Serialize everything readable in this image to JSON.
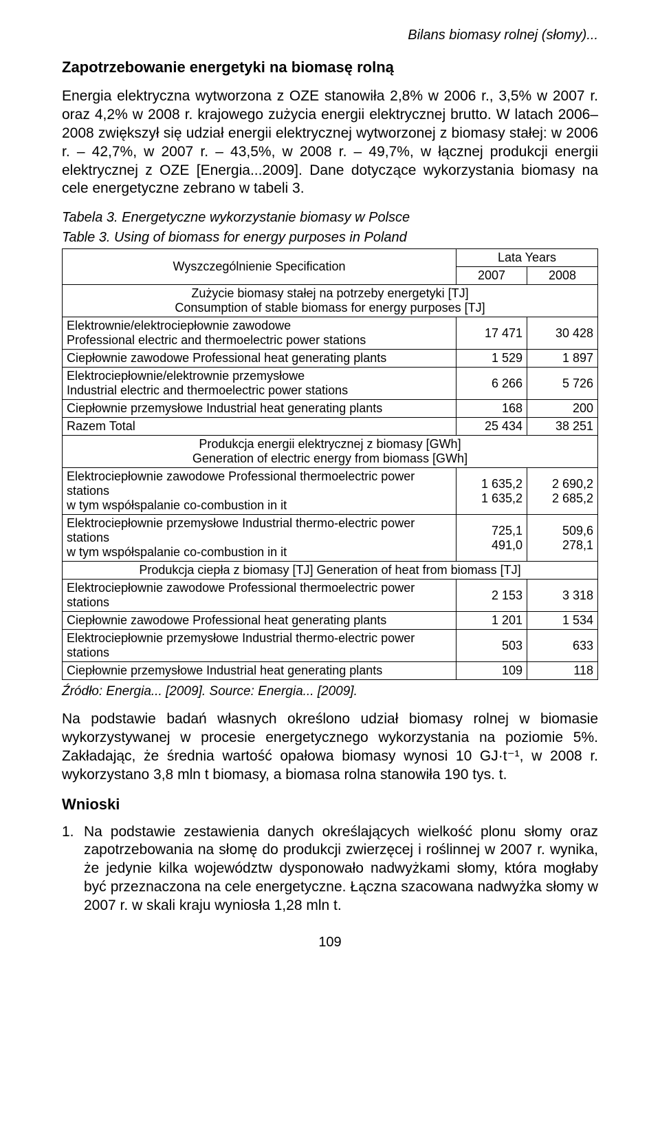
{
  "runningTitle": "Bilans biomasy rolnej (słomy)...",
  "sectionHeading": "Zapotrzebowanie energetyki na biomasę rolną",
  "para1": "Energia elektryczna wytworzona z OZE stanowiła 2,8% w 2006 r., 3,5% w 2007 r. oraz 4,2% w 2008 r. krajowego zużycia energii elektrycznej brutto. W latach 2006–2008 zwiększył się udział energii elektrycznej wytworzonej z biomasy stałej: w 2006 r. – 42,7%, w 2007 r. – 43,5%, w 2008 r. – 49,7%, w łącznej produkcji energii elektrycznej z OZE [Energia...2009]. Dane dotyczące wykorzystania biomasy na cele energetyczne zebrano w tabeli 3.",
  "tableCaptionPl": "Tabela 3. Energetyczne wykorzystanie biomasy w Polsce",
  "tableCaptionEn": "Table 3. Using of biomass for energy purposes in Poland",
  "table": {
    "specHeader": "Wyszczególnienie  Specification",
    "yearsHeader": "Lata  Years",
    "year1": "2007",
    "year2": "2008",
    "sub1": "Zużycie biomasy stałej na potrzeby energetyki [TJ]\nConsumption of stable biomass for energy purposes [TJ]",
    "r1label": "Elektrownie/elektrociepłownie zawodowe\nProfessional electric and thermoelectric power stations",
    "r1v1": "17 471",
    "r1v2": "30 428",
    "r2label": "Ciepłownie zawodowe   Professional heat generating plants",
    "r2v1": "1 529",
    "r2v2": "1 897",
    "r3label": "Elektrociepłownie/elektrownie przemysłowe\nIndustrial electric and thermoelectric power stations",
    "r3v1": "6 266",
    "r3v2": "5 726",
    "r4label": "Ciepłownie przemysłowe   Industrial heat generating plants",
    "r4v1": "168",
    "r4v2": "200",
    "r5label": "Razem   Total",
    "r5v1": "25 434",
    "r5v2": "38 251",
    "sub2": "Produkcja energii elektrycznej z biomasy [GWh]\nGeneration of electric energy from biomass [GWh]",
    "r6label": "Elektrociepłownie zawodowe  Professional thermoelectric power stations\n w tym współspalanie   co-combustion in it",
    "r6v1": "1 635,2\n1 635,2",
    "r6v2": "2 690,2\n2 685,2",
    "r7label": "Elektrociepłownie przemysłowe  Industrial thermo-electric power stations\n w tym współspalanie  co-combustion in it",
    "r7v1": "725,1\n491,0",
    "r7v2": "509,6\n278,1",
    "sub3": "Produkcja ciepła z biomasy [TJ]  Generation of heat from biomass [TJ]",
    "r8label": "Elektrociepłownie zawodowe   Professional thermoelectric power stations",
    "r8v1": "2 153",
    "r8v2": "3 318",
    "r9label": "Ciepłownie zawodowe   Professional heat generating plants",
    "r9v1": "1 201",
    "r9v2": "1 534",
    "r10label": "Elektrociepłownie przemysłowe  Industrial thermo-electric power stations",
    "r10v1": "503",
    "r10v2": "633",
    "r11label": "Ciepłownie przemysłowe  Industrial heat generating plants",
    "r11v1": "109",
    "r11v2": "118"
  },
  "sourceNote": "Źródło: Energia... [2009]. Source: Energia... [2009].",
  "para2": "Na podstawie badań własnych określono udział biomasy rolnej w biomasie wykorzystywanej w procesie energetycznego wykorzystania na poziomie 5%. Zakładając, że średnia wartość opałowa biomasy wynosi 10 GJ·t⁻¹, w 2008 r. wykorzystano 3,8 mln t biomasy, a biomasa rolna stanowiła 190 tys. t.",
  "conclusionsHeading": "Wnioski",
  "list1marker": "1.",
  "list1": "Na podstawie zestawienia danych określających wielkość plonu słomy oraz zapotrzebowania na słomę do produkcji zwierzęcej i roślinnej w 2007 r. wynika, że jedynie kilka województw dysponowało nadwyżkami słomy, która mogłaby być przeznaczona na cele energetyczne. Łączna szacowana nadwyżka słomy w 2007 r. w skali kraju wyniosła 1,28 mln t.",
  "pageNumber": "109"
}
